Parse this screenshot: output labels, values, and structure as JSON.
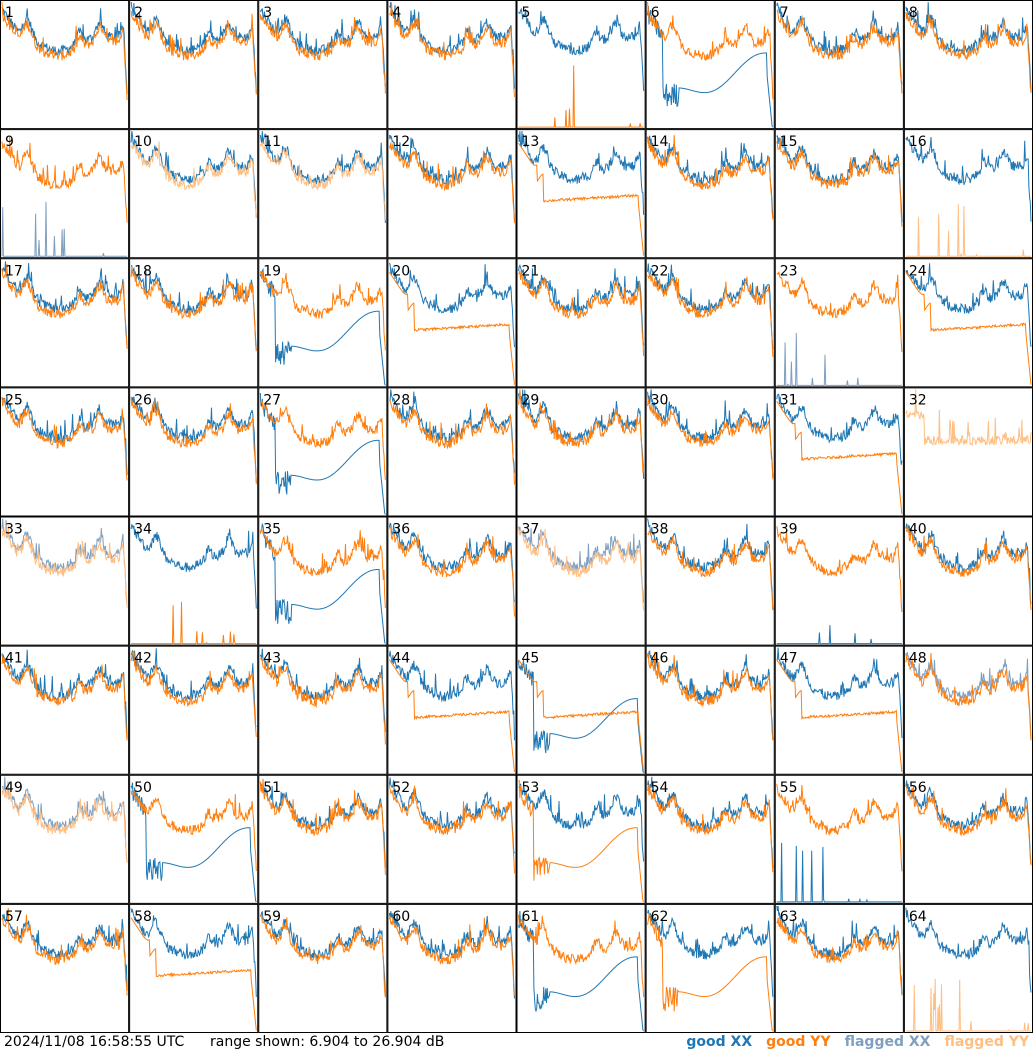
{
  "chart_data": {
    "type": "line",
    "panels_count": 64,
    "grid_rows": 8,
    "grid_cols": 8,
    "panel_labels": [
      "1",
      "2",
      "3",
      "4",
      "5",
      "6",
      "7",
      "8",
      "9",
      "10",
      "11",
      "12",
      "13",
      "14",
      "15",
      "16",
      "17",
      "18",
      "19",
      "20",
      "21",
      "22",
      "23",
      "24",
      "25",
      "26",
      "27",
      "28",
      "29",
      "30",
      "31",
      "32",
      "33",
      "34",
      "35",
      "36",
      "37",
      "38",
      "39",
      "40",
      "41",
      "42",
      "43",
      "44",
      "45",
      "46",
      "47",
      "48",
      "49",
      "50",
      "51",
      "52",
      "53",
      "54",
      "55",
      "56",
      "57",
      "58",
      "59",
      "60",
      "61",
      "62",
      "63",
      "64"
    ],
    "ylim_db": [
      6.904,
      26.904
    ],
    "colors": {
      "good_xx": "#1f77b4",
      "good_yy": "#ff7f0e",
      "flagged_xx": "#7f9fbf",
      "flagged_yy": "#ffbe82"
    },
    "panel_types": {
      "5": {
        "xx": "good",
        "yy": "sparse"
      },
      "6": {
        "xx": "dip",
        "yy": "good"
      },
      "9": {
        "xx": "sparse_flagged",
        "yy": "good"
      },
      "10": {
        "xx": "good",
        "yy": "low_flagged"
      },
      "11": {
        "xx": "good",
        "yy": "low_flagged"
      },
      "13": {
        "xx": "good",
        "yy": "low"
      },
      "16": {
        "xx": "good",
        "yy": "sparse_flagged"
      },
      "19": {
        "xx": "dip",
        "yy": "good"
      },
      "20": {
        "xx": "good",
        "yy": "low"
      },
      "23": {
        "xx": "sparse_flagged",
        "yy": "good"
      },
      "24": {
        "xx": "good",
        "yy": "low"
      },
      "27": {
        "xx": "dip",
        "yy": "good"
      },
      "31": {
        "xx": "good",
        "yy": "low"
      },
      "32": {
        "xx": "none",
        "yy": "spiky_flagged"
      },
      "33": {
        "xx": "flagged",
        "yy": "flagged"
      },
      "34": {
        "xx": "good",
        "yy": "sparse"
      },
      "35": {
        "xx": "dip",
        "yy": "good"
      },
      "37": {
        "xx": "flagged",
        "yy": "flagged"
      },
      "39": {
        "xx": "sparse",
        "yy": "good"
      },
      "44": {
        "xx": "good",
        "yy": "low"
      },
      "45": {
        "xx": "dip",
        "yy": "low"
      },
      "47": {
        "xx": "good",
        "yy": "low"
      },
      "48": {
        "xx": "flagged",
        "yy": "good"
      },
      "49": {
        "xx": "flagged",
        "yy": "flagged"
      },
      "50": {
        "xx": "dip",
        "yy": "good"
      },
      "53": {
        "xx": "good",
        "yy": "dip"
      },
      "55": {
        "xx": "sparse",
        "yy": "good"
      },
      "58": {
        "xx": "good",
        "yy": "low"
      },
      "61": {
        "xx": "dip",
        "yy": "good"
      },
      "62": {
        "xx": "good",
        "yy": "dip"
      },
      "64": {
        "xx": "good",
        "yy": "sparse_flagged"
      }
    }
  },
  "footer": {
    "timestamp": "2024/11/08 16:58:55 UTC",
    "range_text": "range shown: 6.904 to 26.904 dB",
    "legend": {
      "good_xx": "good XX",
      "good_yy": "good YY",
      "flagged_xx": "flagged XX",
      "flagged_yy": "flagged YY"
    }
  }
}
